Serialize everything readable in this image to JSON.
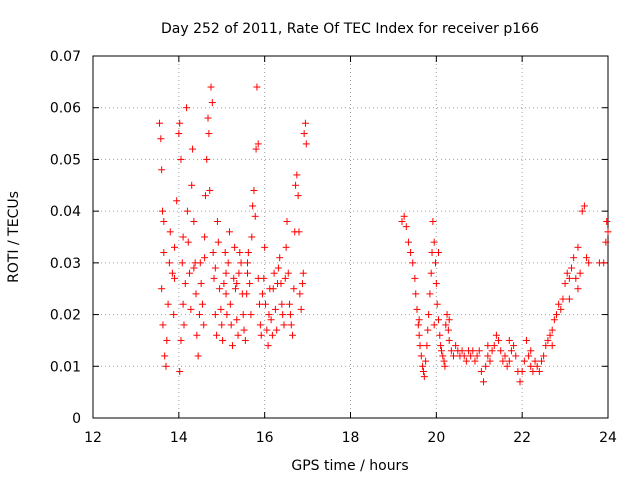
{
  "chart_data": {
    "type": "scatter",
    "title": "Day 252 of 2011, Rate Of TEC Index for receiver p166",
    "xlabel": "GPS time / hours",
    "ylabel": "ROTI / TECUs",
    "xlim": [
      12,
      24
    ],
    "ylim": [
      0,
      0.07
    ],
    "xticks": [
      "12",
      "14",
      "16",
      "18",
      "20",
      "22",
      "24"
    ],
    "yticks": [
      "0",
      "0.01",
      "0.02",
      "0.03",
      "0.04",
      "0.05",
      "0.06",
      "0.07"
    ],
    "grid": true,
    "marker": "+",
    "series": [
      {
        "name": "ROTI",
        "color": "#ff0000",
        "points": [
          [
            13.55,
            0.057
          ],
          [
            13.58,
            0.054
          ],
          [
            13.6,
            0.048
          ],
          [
            13.62,
            0.04
          ],
          [
            13.65,
            0.032
          ],
          [
            13.6,
            0.025
          ],
          [
            13.63,
            0.018
          ],
          [
            13.67,
            0.012
          ],
          [
            13.7,
            0.01
          ],
          [
            13.72,
            0.015
          ],
          [
            13.75,
            0.022
          ],
          [
            13.78,
            0.03
          ],
          [
            13.8,
            0.036
          ],
          [
            13.85,
            0.028
          ],
          [
            13.88,
            0.02
          ],
          [
            13.9,
            0.033
          ],
          [
            13.95,
            0.042
          ],
          [
            14.0,
            0.055
          ],
          [
            14.02,
            0.057
          ],
          [
            14.05,
            0.05
          ],
          [
            14.08,
            0.03
          ],
          [
            14.1,
            0.022
          ],
          [
            14.05,
            0.015
          ],
          [
            14.02,
            0.009
          ],
          [
            14.12,
            0.018
          ],
          [
            14.15,
            0.026
          ],
          [
            14.18,
            0.06
          ],
          [
            14.2,
            0.04
          ],
          [
            14.22,
            0.034
          ],
          [
            14.25,
            0.028
          ],
          [
            14.28,
            0.021
          ],
          [
            14.3,
            0.045
          ],
          [
            14.32,
            0.052
          ],
          [
            14.35,
            0.038
          ],
          [
            14.38,
            0.03
          ],
          [
            14.4,
            0.024
          ],
          [
            14.42,
            0.016
          ],
          [
            14.45,
            0.012
          ],
          [
            14.48,
            0.02
          ],
          [
            14.5,
            0.03
          ],
          [
            14.52,
            0.026
          ],
          [
            14.55,
            0.022
          ],
          [
            14.58,
            0.018
          ],
          [
            14.6,
            0.035
          ],
          [
            14.62,
            0.043
          ],
          [
            14.65,
            0.05
          ],
          [
            14.68,
            0.058
          ],
          [
            14.7,
            0.055
          ],
          [
            14.72,
            0.044
          ],
          [
            14.75,
            0.064
          ],
          [
            14.78,
            0.061
          ],
          [
            14.8,
            0.032
          ],
          [
            14.82,
            0.027
          ],
          [
            14.85,
            0.02
          ],
          [
            14.88,
            0.016
          ],
          [
            14.9,
            0.038
          ],
          [
            14.92,
            0.034
          ],
          [
            14.95,
            0.025
          ],
          [
            14.98,
            0.021
          ],
          [
            15.0,
            0.018
          ],
          [
            15.02,
            0.015
          ],
          [
            15.05,
            0.026
          ],
          [
            15.08,
            0.032
          ],
          [
            15.1,
            0.024
          ],
          [
            15.12,
            0.02
          ],
          [
            15.15,
            0.03
          ],
          [
            15.18,
            0.036
          ],
          [
            15.2,
            0.022
          ],
          [
            15.22,
            0.018
          ],
          [
            15.25,
            0.014
          ],
          [
            15.28,
            0.027
          ],
          [
            15.3,
            0.033
          ],
          [
            15.32,
            0.025
          ],
          [
            15.35,
            0.019
          ],
          [
            15.38,
            0.016
          ],
          [
            15.4,
            0.028
          ],
          [
            15.42,
            0.032
          ],
          [
            15.45,
            0.03
          ],
          [
            15.48,
            0.024
          ],
          [
            15.5,
            0.02
          ],
          [
            15.52,
            0.017
          ],
          [
            15.55,
            0.015
          ],
          [
            15.58,
            0.024
          ],
          [
            15.6,
            0.028
          ],
          [
            15.62,
            0.032
          ],
          [
            15.65,
            0.026
          ],
          [
            15.68,
            0.02
          ],
          [
            15.7,
            0.035
          ],
          [
            15.72,
            0.041
          ],
          [
            15.75,
            0.044
          ],
          [
            15.78,
            0.039
          ],
          [
            15.8,
            0.052
          ],
          [
            15.82,
            0.064
          ],
          [
            15.85,
            0.053
          ],
          [
            15.88,
            0.022
          ],
          [
            15.9,
            0.018
          ],
          [
            15.92,
            0.016
          ],
          [
            15.95,
            0.024
          ],
          [
            15.98,
            0.027
          ],
          [
            16.0,
            0.033
          ],
          [
            16.02,
            0.022
          ],
          [
            16.05,
            0.017
          ],
          [
            16.08,
            0.014
          ],
          [
            16.1,
            0.02
          ],
          [
            16.12,
            0.025
          ],
          [
            16.15,
            0.019
          ],
          [
            16.18,
            0.016
          ],
          [
            16.2,
            0.025
          ],
          [
            16.22,
            0.028
          ],
          [
            16.25,
            0.021
          ],
          [
            16.28,
            0.017
          ],
          [
            16.3,
            0.026
          ],
          [
            16.32,
            0.029
          ],
          [
            16.35,
            0.031
          ],
          [
            16.38,
            0.026
          ],
          [
            16.4,
            0.022
          ],
          [
            16.42,
            0.02
          ],
          [
            16.45,
            0.018
          ],
          [
            16.48,
            0.027
          ],
          [
            16.5,
            0.033
          ],
          [
            16.52,
            0.038
          ],
          [
            16.55,
            0.028
          ],
          [
            16.58,
            0.022
          ],
          [
            16.6,
            0.02
          ],
          [
            16.62,
            0.018
          ],
          [
            16.65,
            0.016
          ],
          [
            16.68,
            0.025
          ],
          [
            16.7,
            0.036
          ],
          [
            16.72,
            0.045
          ],
          [
            16.75,
            0.047
          ],
          [
            16.78,
            0.043
          ],
          [
            16.8,
            0.036
          ],
          [
            16.82,
            0.024
          ],
          [
            16.85,
            0.021
          ],
          [
            16.88,
            0.026
          ],
          [
            16.9,
            0.028
          ],
          [
            16.92,
            0.055
          ],
          [
            16.95,
            0.057
          ],
          [
            16.97,
            0.053
          ],
          [
            13.65,
            0.038
          ],
          [
            13.9,
            0.027
          ],
          [
            14.1,
            0.035
          ],
          [
            14.35,
            0.029
          ],
          [
            14.6,
            0.031
          ],
          [
            14.85,
            0.029
          ],
          [
            15.1,
            0.028
          ],
          [
            15.35,
            0.026
          ],
          [
            15.6,
            0.03
          ],
          [
            15.85,
            0.027
          ],
          [
            19.2,
            0.038
          ],
          [
            19.25,
            0.039
          ],
          [
            19.3,
            0.037
          ],
          [
            19.35,
            0.034
          ],
          [
            19.4,
            0.032
          ],
          [
            19.45,
            0.03
          ],
          [
            19.5,
            0.027
          ],
          [
            19.52,
            0.024
          ],
          [
            19.55,
            0.021
          ],
          [
            19.58,
            0.018
          ],
          [
            19.6,
            0.016
          ],
          [
            19.62,
            0.014
          ],
          [
            19.65,
            0.012
          ],
          [
            19.68,
            0.01
          ],
          [
            19.7,
            0.009
          ],
          [
            19.72,
            0.008
          ],
          [
            19.75,
            0.011
          ],
          [
            19.78,
            0.014
          ],
          [
            19.8,
            0.017
          ],
          [
            19.82,
            0.02
          ],
          [
            19.85,
            0.024
          ],
          [
            19.88,
            0.028
          ],
          [
            19.9,
            0.032
          ],
          [
            19.92,
            0.038
          ],
          [
            19.95,
            0.034
          ],
          [
            19.98,
            0.03
          ],
          [
            20.0,
            0.026
          ],
          [
            20.02,
            0.022
          ],
          [
            20.05,
            0.019
          ],
          [
            20.08,
            0.016
          ],
          [
            20.1,
            0.014
          ],
          [
            20.12,
            0.013
          ],
          [
            20.15,
            0.012
          ],
          [
            20.18,
            0.011
          ],
          [
            20.2,
            0.01
          ],
          [
            20.22,
            0.018
          ],
          [
            20.25,
            0.02
          ],
          [
            20.28,
            0.017
          ],
          [
            20.3,
            0.015
          ],
          [
            20.35,
            0.013
          ],
          [
            20.4,
            0.012
          ],
          [
            20.45,
            0.014
          ],
          [
            20.5,
            0.013
          ],
          [
            20.55,
            0.012
          ],
          [
            20.6,
            0.013
          ],
          [
            20.65,
            0.012
          ],
          [
            20.7,
            0.011
          ],
          [
            20.75,
            0.013
          ],
          [
            20.8,
            0.012
          ],
          [
            20.85,
            0.013
          ],
          [
            20.9,
            0.011
          ],
          [
            20.95,
            0.012
          ],
          [
            21.0,
            0.013
          ],
          [
            21.05,
            0.009
          ],
          [
            21.1,
            0.007
          ],
          [
            21.15,
            0.01
          ],
          [
            21.2,
            0.012
          ],
          [
            21.25,
            0.011
          ],
          [
            21.3,
            0.013
          ],
          [
            21.35,
            0.014
          ],
          [
            21.4,
            0.016
          ],
          [
            21.45,
            0.015
          ],
          [
            21.5,
            0.013
          ],
          [
            21.55,
            0.011
          ],
          [
            21.6,
            0.012
          ],
          [
            21.65,
            0.01
          ],
          [
            21.7,
            0.011
          ],
          [
            21.75,
            0.013
          ],
          [
            21.8,
            0.014
          ],
          [
            21.85,
            0.012
          ],
          [
            21.9,
            0.009
          ],
          [
            21.95,
            0.007
          ],
          [
            22.0,
            0.009
          ],
          [
            22.05,
            0.011
          ],
          [
            22.1,
            0.015
          ],
          [
            22.15,
            0.012
          ],
          [
            22.2,
            0.01
          ],
          [
            22.25,
            0.009
          ],
          [
            22.3,
            0.011
          ],
          [
            22.35,
            0.01
          ],
          [
            22.4,
            0.009
          ],
          [
            22.45,
            0.011
          ],
          [
            22.5,
            0.012
          ],
          [
            22.55,
            0.014
          ],
          [
            22.6,
            0.015
          ],
          [
            22.65,
            0.016
          ],
          [
            22.7,
            0.017
          ],
          [
            22.75,
            0.019
          ],
          [
            22.8,
            0.02
          ],
          [
            22.85,
            0.022
          ],
          [
            22.9,
            0.021
          ],
          [
            22.95,
            0.023
          ],
          [
            23.0,
            0.026
          ],
          [
            23.05,
            0.028
          ],
          [
            23.1,
            0.027
          ],
          [
            23.15,
            0.029
          ],
          [
            23.2,
            0.031
          ],
          [
            23.25,
            0.027
          ],
          [
            23.3,
            0.025
          ],
          [
            23.35,
            0.028
          ],
          [
            23.4,
            0.04
          ],
          [
            23.45,
            0.041
          ],
          [
            23.5,
            0.031
          ],
          [
            23.55,
            0.03
          ],
          [
            23.8,
            0.03
          ],
          [
            23.9,
            0.03
          ],
          [
            23.95,
            0.034
          ],
          [
            24.0,
            0.036
          ],
          [
            23.97,
            0.038
          ],
          [
            19.6,
            0.019
          ],
          [
            19.95,
            0.018
          ],
          [
            20.3,
            0.019
          ],
          [
            21.2,
            0.014
          ],
          [
            21.7,
            0.015
          ],
          [
            22.2,
            0.013
          ],
          [
            22.7,
            0.014
          ],
          [
            23.1,
            0.023
          ],
          [
            23.3,
            0.033
          ],
          [
            20.05,
            0.032
          ]
        ]
      }
    ]
  }
}
